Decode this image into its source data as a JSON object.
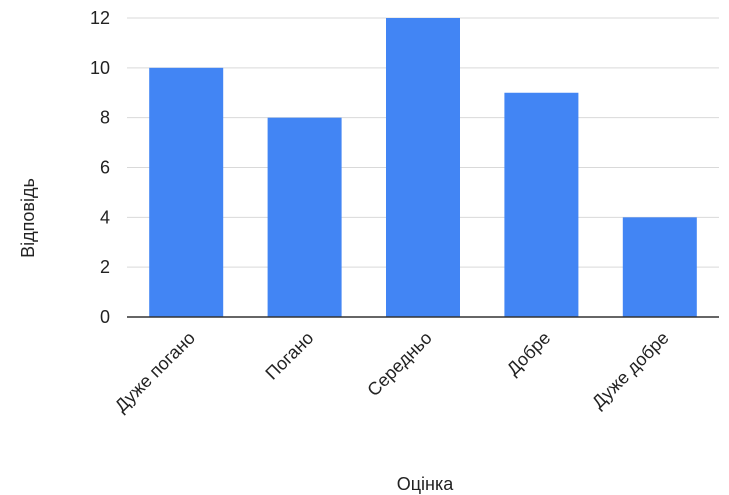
{
  "chart_data": {
    "type": "bar",
    "categories": [
      "Дуже погано",
      "Погано",
      "Середньо",
      "Добре",
      "Дуже добре"
    ],
    "values": [
      10,
      8,
      12,
      9,
      4
    ],
    "title": "",
    "xlabel": "Оцінка",
    "ylabel": "Відповідь",
    "ylim": [
      0,
      12
    ],
    "yticks": [
      0,
      2,
      4,
      6,
      8,
      10,
      12
    ],
    "grid": true,
    "bar_color": "#4285f4",
    "gridline_color": "#d9d9d9",
    "axis_color": "#333333"
  }
}
